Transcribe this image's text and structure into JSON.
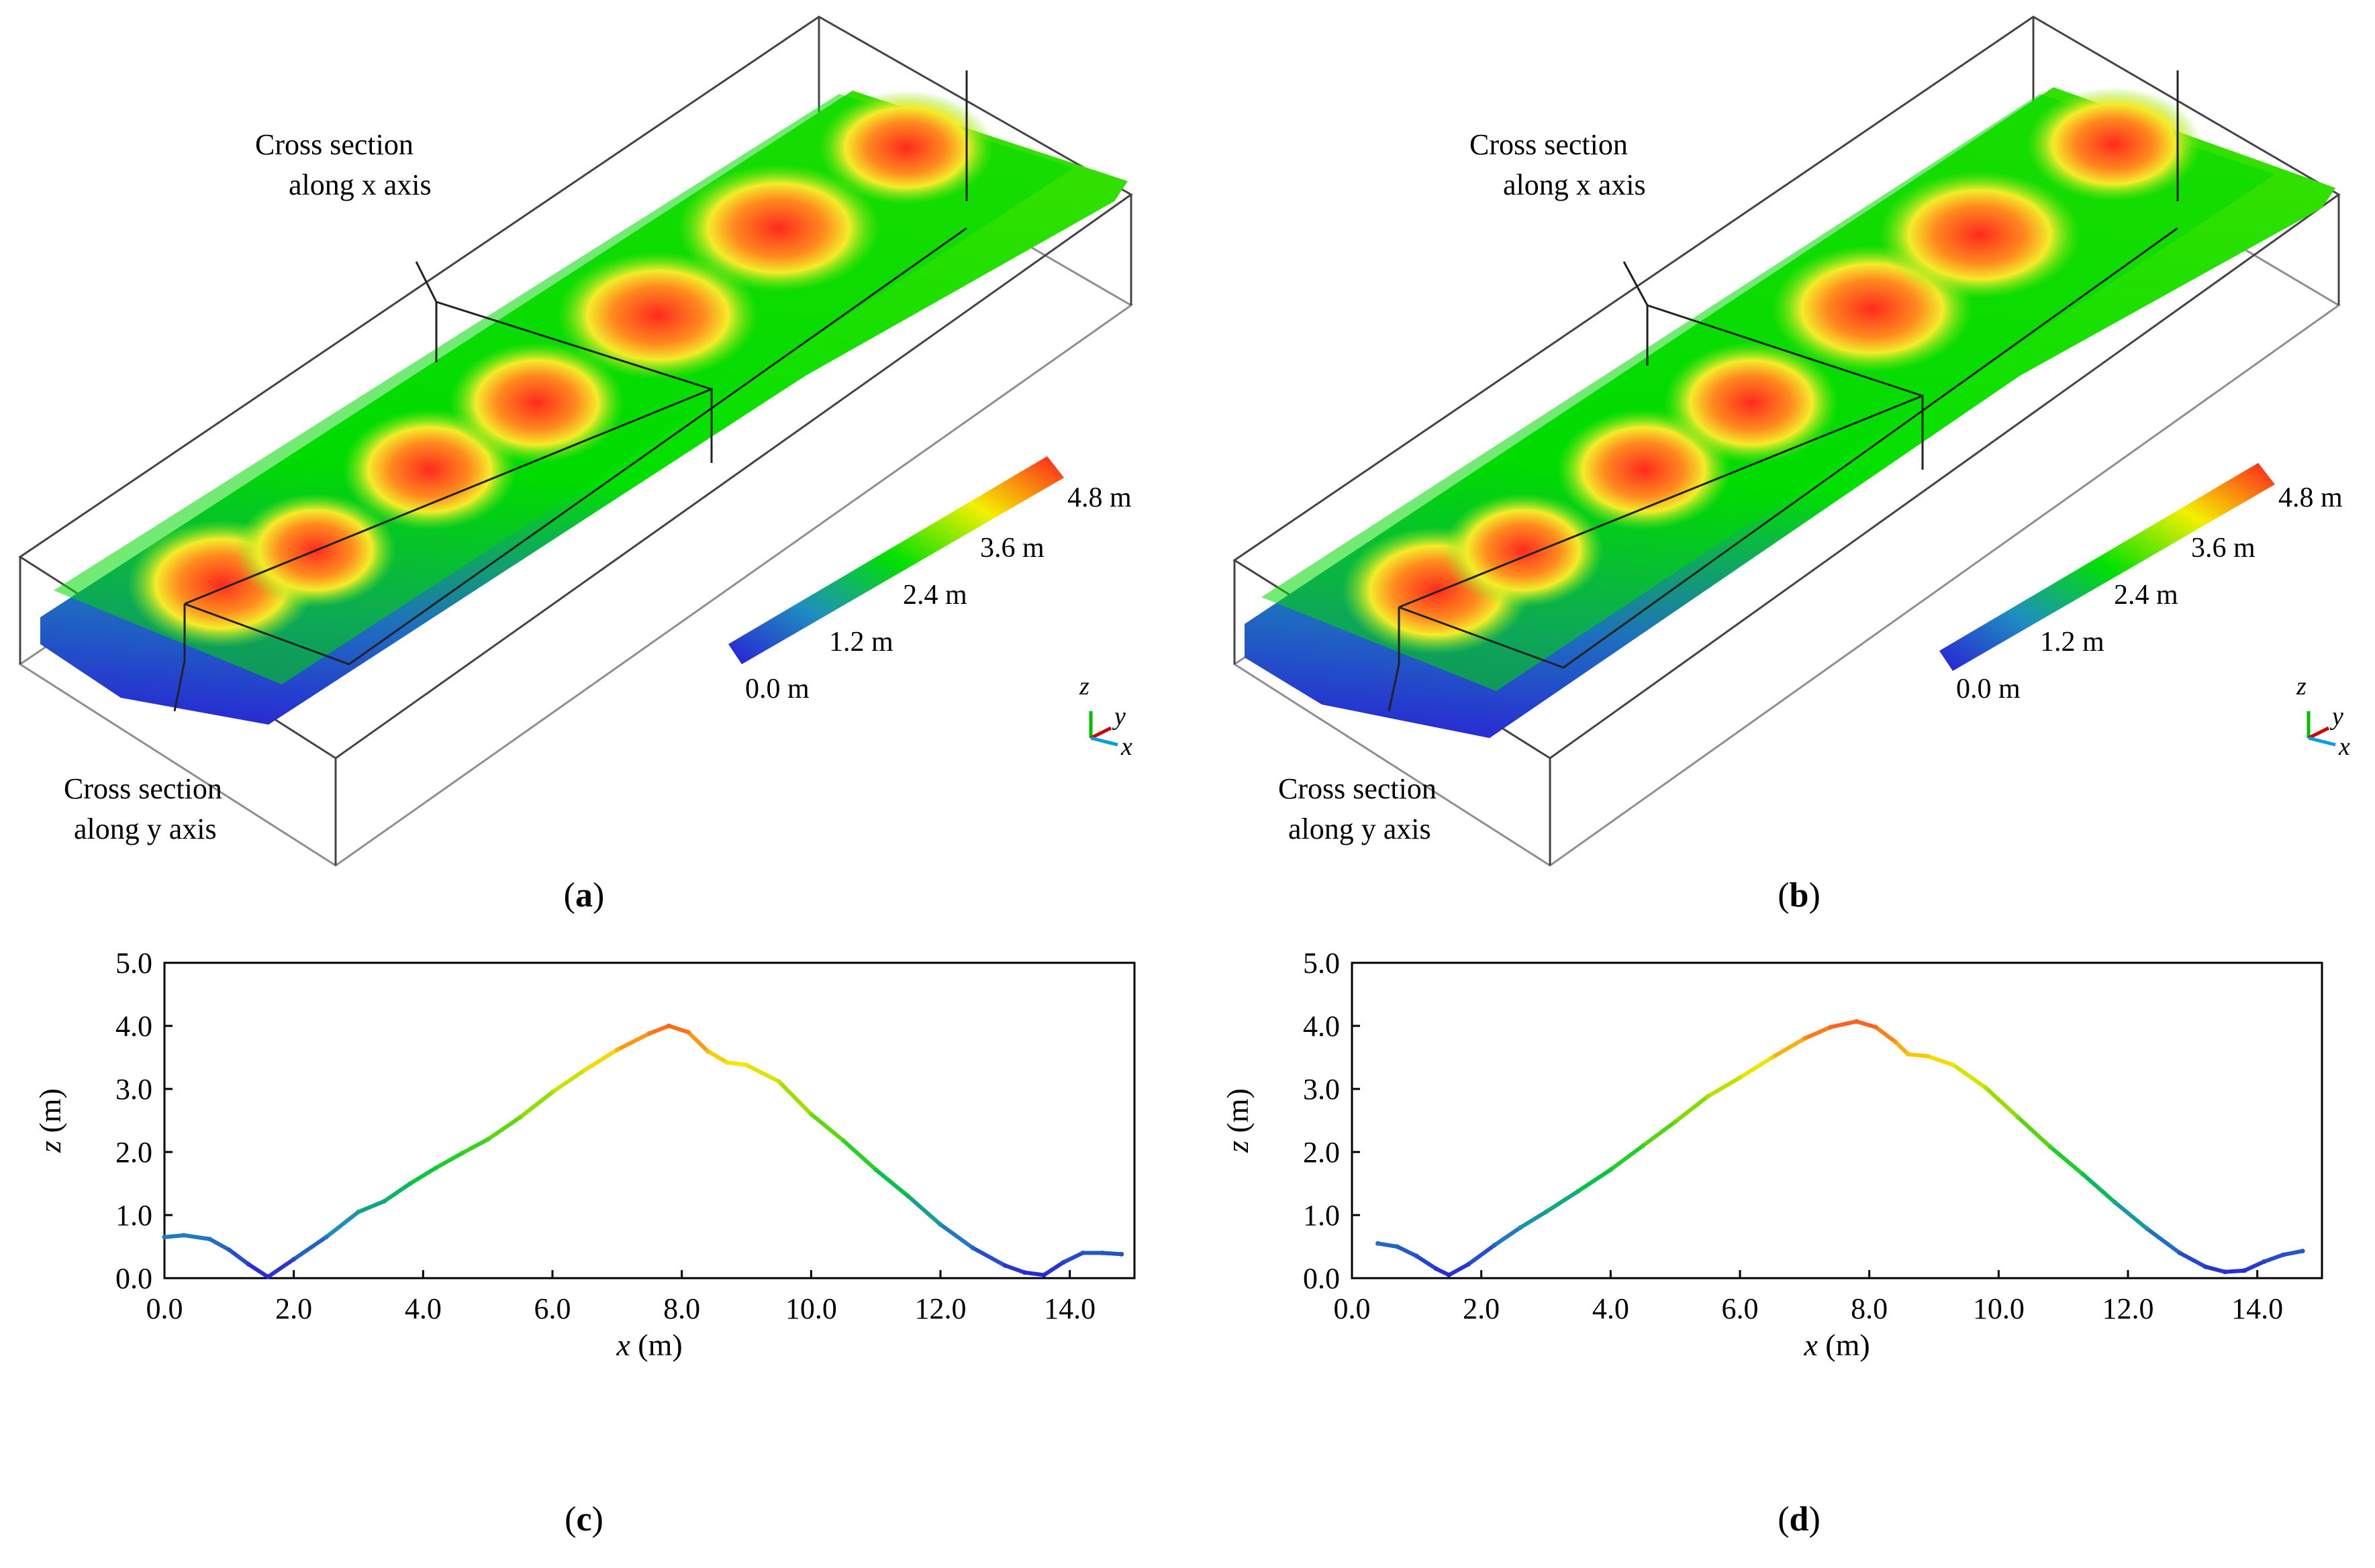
{
  "panel_a": {
    "label": "a",
    "annotation_x": [
      "Cross section",
      "along x axis"
    ],
    "annotation_y": [
      "Cross section",
      "along y axis"
    ],
    "colorbar_ticks": [
      "0.0 m",
      "1.2 m",
      "2.4 m",
      "3.6 m",
      "4.8 m"
    ],
    "axes_labels": {
      "z": "z",
      "y": "y",
      "x": "x"
    }
  },
  "panel_b": {
    "label": "b",
    "annotation_x": [
      "Cross section",
      "along x axis"
    ],
    "annotation_y": [
      "Cross section",
      "along y axis"
    ],
    "colorbar_ticks": [
      "0.0 m",
      "1.2 m",
      "2.4 m",
      "3.6 m",
      "4.8 m"
    ],
    "axes_labels": {
      "z": "z",
      "y": "y",
      "x": "x"
    }
  },
  "colors": {
    "low": "#2a1fd6",
    "mid_low": "#1e6fbf",
    "mid": "#00e000",
    "mid_high": "#f4f000",
    "high": "#ff1e1e",
    "frame": "#333333"
  },
  "chart_data": [
    {
      "type": "scatter",
      "panel": "c",
      "title": "",
      "xlabel": "x (m)",
      "ylabel": "z (m)",
      "xlim": [
        0,
        15
      ],
      "ylim": [
        0,
        5
      ],
      "xticks": [
        "0.0",
        "2.0",
        "4.0",
        "6.0",
        "8.0",
        "10.0",
        "12.0",
        "14.0"
      ],
      "yticks": [
        "0.0",
        "1.0",
        "2.0",
        "3.0",
        "4.0",
        "5.0"
      ],
      "x": [
        0.0,
        0.3,
        0.7,
        1.0,
        1.3,
        1.6,
        2.0,
        2.5,
        3.0,
        3.4,
        3.8,
        4.2,
        4.6,
        5.0,
        5.5,
        6.0,
        6.5,
        7.0,
        7.5,
        7.8,
        8.1,
        8.4,
        8.7,
        9.0,
        9.5,
        10.0,
        10.5,
        11.0,
        11.5,
        12.0,
        12.5,
        13.0,
        13.3,
        13.6,
        13.9,
        14.2,
        14.5,
        14.8
      ],
      "y": [
        0.65,
        0.68,
        0.62,
        0.45,
        0.22,
        0.02,
        0.3,
        0.65,
        1.05,
        1.22,
        1.5,
        1.75,
        1.98,
        2.2,
        2.55,
        2.95,
        3.3,
        3.62,
        3.88,
        4.0,
        3.9,
        3.6,
        3.42,
        3.38,
        3.12,
        2.6,
        2.18,
        1.72,
        1.3,
        0.85,
        0.48,
        0.2,
        0.09,
        0.05,
        0.25,
        0.4,
        0.4,
        0.38
      ]
    },
    {
      "type": "scatter",
      "panel": "d",
      "title": "",
      "xlabel": "x (m)",
      "ylabel": "z (m)",
      "xlim": [
        0,
        15
      ],
      "ylim": [
        0,
        5
      ],
      "xticks": [
        "0.0",
        "2.0",
        "4.0",
        "6.0",
        "8.0",
        "10.0",
        "12.0",
        "14.0"
      ],
      "yticks": [
        "0.0",
        "1.0",
        "2.0",
        "3.0",
        "4.0",
        "5.0"
      ],
      "x": [
        0.4,
        0.7,
        1.0,
        1.3,
        1.5,
        1.8,
        2.2,
        2.6,
        3.0,
        3.5,
        4.0,
        4.5,
        5.0,
        5.5,
        6.0,
        6.5,
        7.0,
        7.4,
        7.8,
        8.1,
        8.4,
        8.6,
        8.9,
        9.3,
        9.8,
        10.3,
        10.8,
        11.3,
        11.8,
        12.3,
        12.8,
        13.2,
        13.5,
        13.8,
        14.1,
        14.4,
        14.7
      ],
      "y": [
        0.55,
        0.5,
        0.35,
        0.15,
        0.05,
        0.22,
        0.52,
        0.8,
        1.05,
        1.38,
        1.72,
        2.1,
        2.48,
        2.88,
        3.18,
        3.5,
        3.8,
        3.98,
        4.07,
        3.98,
        3.75,
        3.55,
        3.52,
        3.38,
        3.02,
        2.55,
        2.08,
        1.65,
        1.2,
        0.78,
        0.4,
        0.18,
        0.1,
        0.12,
        0.26,
        0.37,
        0.43
      ]
    }
  ],
  "captions": {
    "c": "c",
    "d": "d"
  }
}
